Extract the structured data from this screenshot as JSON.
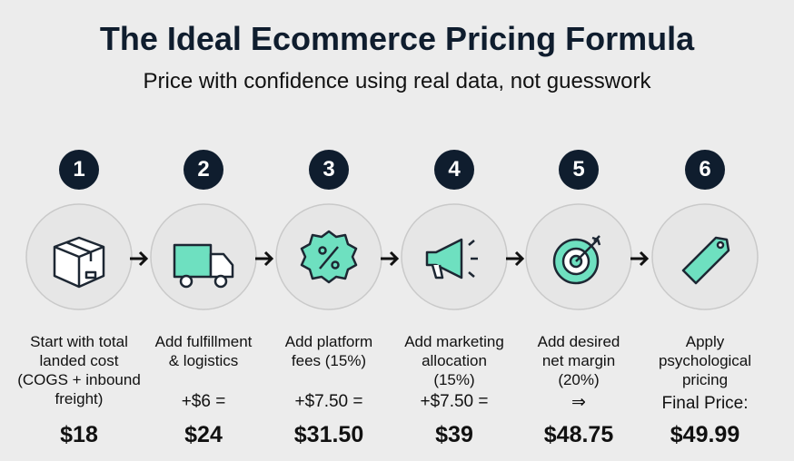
{
  "header": {
    "title": "The Ideal Ecommerce Pricing Formula",
    "subtitle": "Price with confidence using real data, not guesswork"
  },
  "steps": [
    {
      "number": "1",
      "label_lines": [
        "Start with total",
        "landed cost",
        "(COGS + inbound",
        "freight)"
      ],
      "result": "$18"
    },
    {
      "number": "2",
      "label_lines": [
        "Add fulfillment",
        "& logistics"
      ],
      "formula": "+$6 =",
      "result": "$24"
    },
    {
      "number": "3",
      "label_lines": [
        "Add platform",
        "fees (15%)"
      ],
      "formula": "+$7.50 =",
      "result": "$31.50"
    },
    {
      "number": "4",
      "label_lines": [
        "Add marketing",
        "allocation",
        "(15%)"
      ],
      "formula": "+$7.50 =",
      "result": "$39"
    },
    {
      "number": "5",
      "label_lines": [
        "Add desired",
        "net margin",
        "(20%)"
      ],
      "formula": "⇒",
      "result": "$48.75"
    },
    {
      "number": "6",
      "label_lines": [
        "Apply",
        "psychological",
        "pricing"
      ],
      "formula": "Final Price:",
      "result": "$49.99"
    }
  ]
}
